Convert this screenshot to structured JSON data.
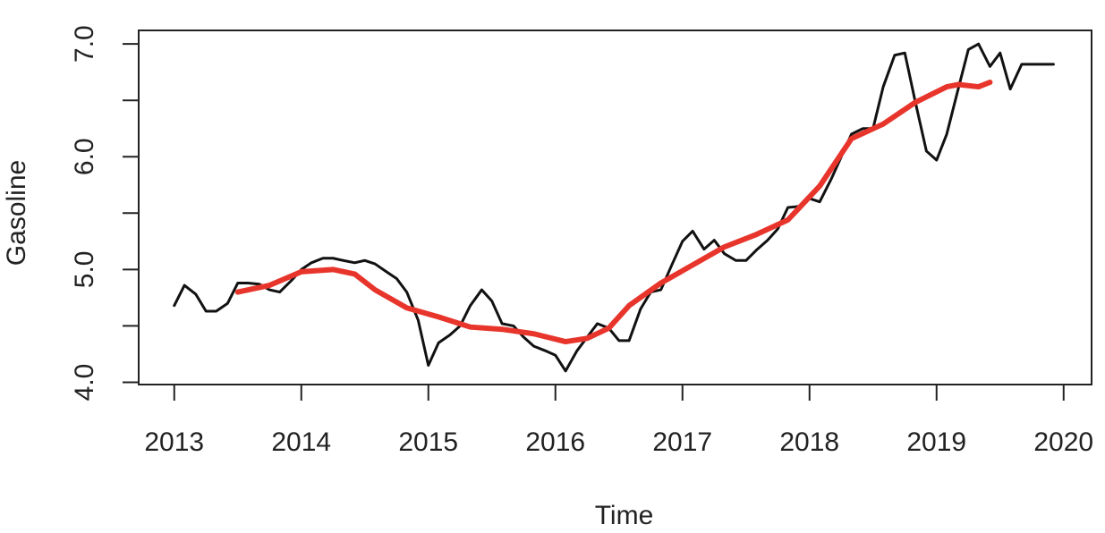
{
  "chart_data": {
    "type": "line",
    "xlabel": "Time",
    "ylabel": "Gasoline",
    "xlim": [
      2012.72,
      2020.22
    ],
    "ylim": [
      3.98,
      7.12
    ],
    "x_ticks": [
      2013,
      2014,
      2015,
      2016,
      2017,
      2018,
      2019,
      2020
    ],
    "x_tick_labels": [
      "2013",
      "2014",
      "2015",
      "2016",
      "2017",
      "2018",
      "2019",
      "2020"
    ],
    "y_ticks": [
      4.0,
      4.5,
      5.0,
      5.5,
      6.0,
      6.5,
      7.0
    ],
    "y_tick_labels": [
      "4.0",
      "",
      "5.0",
      "",
      "6.0",
      "",
      "7.0"
    ],
    "grid": false,
    "series": [
      {
        "color": "#111111",
        "line_width": 3,
        "points": [
          [
            2013.0,
            4.68
          ],
          [
            2013.08,
            4.86
          ],
          [
            2013.17,
            4.78
          ],
          [
            2013.25,
            4.63
          ],
          [
            2013.33,
            4.63
          ],
          [
            2013.42,
            4.7
          ],
          [
            2013.5,
            4.88
          ],
          [
            2013.58,
            4.88
          ],
          [
            2013.67,
            4.87
          ],
          [
            2013.75,
            4.82
          ],
          [
            2013.83,
            4.8
          ],
          [
            2013.92,
            4.9
          ],
          [
            2014.0,
            5.0
          ],
          [
            2014.08,
            5.06
          ],
          [
            2014.17,
            5.1
          ],
          [
            2014.25,
            5.1
          ],
          [
            2014.33,
            5.08
          ],
          [
            2014.42,
            5.06
          ],
          [
            2014.5,
            5.08
          ],
          [
            2014.58,
            5.05
          ],
          [
            2014.67,
            4.98
          ],
          [
            2014.75,
            4.92
          ],
          [
            2014.83,
            4.8
          ],
          [
            2014.92,
            4.55
          ],
          [
            2015.0,
            4.15
          ],
          [
            2015.08,
            4.35
          ],
          [
            2015.17,
            4.42
          ],
          [
            2015.25,
            4.5
          ],
          [
            2015.33,
            4.68
          ],
          [
            2015.42,
            4.82
          ],
          [
            2015.5,
            4.72
          ],
          [
            2015.58,
            4.52
          ],
          [
            2015.67,
            4.5
          ],
          [
            2015.75,
            4.4
          ],
          [
            2015.83,
            4.32
          ],
          [
            2015.92,
            4.28
          ],
          [
            2016.0,
            4.24
          ],
          [
            2016.08,
            4.1
          ],
          [
            2016.17,
            4.28
          ],
          [
            2016.25,
            4.4
          ],
          [
            2016.33,
            4.52
          ],
          [
            2016.42,
            4.48
          ],
          [
            2016.5,
            4.37
          ],
          [
            2016.58,
            4.37
          ],
          [
            2016.67,
            4.65
          ],
          [
            2016.75,
            4.8
          ],
          [
            2016.83,
            4.82
          ],
          [
            2016.92,
            5.05
          ],
          [
            2017.0,
            5.25
          ],
          [
            2017.08,
            5.34
          ],
          [
            2017.17,
            5.18
          ],
          [
            2017.25,
            5.26
          ],
          [
            2017.33,
            5.14
          ],
          [
            2017.42,
            5.08
          ],
          [
            2017.5,
            5.08
          ],
          [
            2017.58,
            5.17
          ],
          [
            2017.67,
            5.26
          ],
          [
            2017.75,
            5.36
          ],
          [
            2017.83,
            5.55
          ],
          [
            2017.92,
            5.56
          ],
          [
            2018.0,
            5.63
          ],
          [
            2018.08,
            5.6
          ],
          [
            2018.17,
            5.8
          ],
          [
            2018.25,
            6.0
          ],
          [
            2018.33,
            6.2
          ],
          [
            2018.42,
            6.25
          ],
          [
            2018.5,
            6.25
          ],
          [
            2018.58,
            6.62
          ],
          [
            2018.67,
            6.9
          ],
          [
            2018.75,
            6.92
          ],
          [
            2018.83,
            6.5
          ],
          [
            2018.92,
            6.05
          ],
          [
            2019.0,
            5.97
          ],
          [
            2019.08,
            6.2
          ],
          [
            2019.17,
            6.6
          ],
          [
            2019.25,
            6.95
          ],
          [
            2019.33,
            7.0
          ],
          [
            2019.42,
            6.8
          ],
          [
            2019.5,
            6.92
          ],
          [
            2019.58,
            6.6
          ],
          [
            2019.67,
            6.82
          ],
          [
            2019.75,
            6.82
          ],
          [
            2019.83,
            6.82
          ],
          [
            2019.92,
            6.82
          ]
        ]
      },
      {
        "color": "#e8352c",
        "line_width": 6,
        "points": [
          [
            2013.5,
            4.8
          ],
          [
            2013.75,
            4.86
          ],
          [
            2014.0,
            4.98
          ],
          [
            2014.25,
            5.0
          ],
          [
            2014.42,
            4.96
          ],
          [
            2014.58,
            4.82
          ],
          [
            2014.83,
            4.66
          ],
          [
            2015.08,
            4.58
          ],
          [
            2015.33,
            4.49
          ],
          [
            2015.58,
            4.47
          ],
          [
            2015.83,
            4.43
          ],
          [
            2016.08,
            4.36
          ],
          [
            2016.25,
            4.39
          ],
          [
            2016.42,
            4.48
          ],
          [
            2016.58,
            4.68
          ],
          [
            2016.83,
            4.88
          ],
          [
            2017.08,
            5.04
          ],
          [
            2017.33,
            5.2
          ],
          [
            2017.58,
            5.31
          ],
          [
            2017.83,
            5.44
          ],
          [
            2018.08,
            5.74
          ],
          [
            2018.33,
            6.16
          ],
          [
            2018.58,
            6.29
          ],
          [
            2018.83,
            6.48
          ],
          [
            2019.08,
            6.62
          ],
          [
            2019.17,
            6.64
          ],
          [
            2019.33,
            6.62
          ],
          [
            2019.42,
            6.66
          ]
        ]
      }
    ]
  }
}
